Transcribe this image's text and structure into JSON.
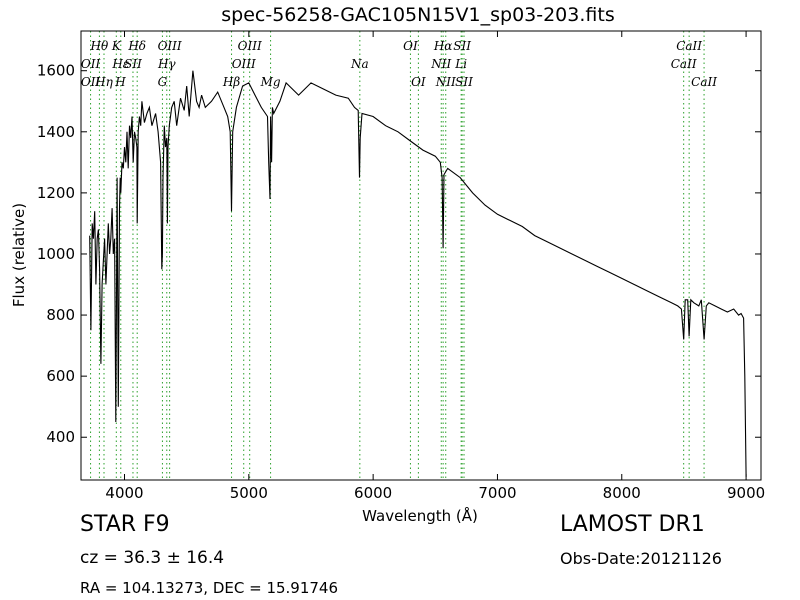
{
  "header": {
    "title": "spec-56258-GAC105N15V1_sp03-203.fits"
  },
  "info": {
    "object": "STAR   F9",
    "cz": "cz = 36.3  ± 16.4",
    "radec": "RA = 104.13273, DEC = 15.91746",
    "survey": "LAMOST DR1",
    "obs_date": "Obs-Date:20121126"
  },
  "colors": {
    "spectrum": "#000000",
    "lines": "#2ca02c",
    "frame": "#000000"
  },
  "chart_data": {
    "type": "line",
    "title": "spec-56258-GAC105N15V1_sp03-203.fits",
    "xlabel": "Wavelength (Å)",
    "ylabel": "Flux (relative)",
    "xlim": [
      3650,
      9120
    ],
    "ylim": [
      260,
      1730
    ],
    "xticks": [
      4000,
      5000,
      6000,
      7000,
      8000,
      9000
    ],
    "yticks": [
      400,
      600,
      800,
      1000,
      1200,
      1400,
      1600
    ],
    "grid": false,
    "series": [
      {
        "x": [
          3720,
          3730,
          3740,
          3750,
          3760,
          3770,
          3780,
          3790,
          3800,
          3810,
          3820,
          3830,
          3840,
          3850,
          3860,
          3870,
          3880,
          3890,
          3900,
          3910,
          3920,
          3930,
          3935,
          3940,
          3950,
          3960,
          3965,
          3970,
          3980,
          3990,
          4000,
          4010,
          4020,
          4030,
          4040,
          4050,
          4060,
          4070,
          4080,
          4090,
          4100,
          4102,
          4110,
          4120,
          4130,
          4140,
          4160,
          4180,
          4200,
          4220,
          4250,
          4270,
          4290,
          4300,
          4305,
          4310,
          4320,
          4330,
          4340,
          4345,
          4350,
          4360,
          4380,
          4400,
          4420,
          4450,
          4480,
          4500,
          4520,
          4550,
          4580,
          4600,
          4620,
          4650,
          4700,
          4750,
          4800,
          4830,
          4850,
          4861,
          4870,
          4900,
          4950,
          5000,
          5050,
          5100,
          5150,
          5160,
          5170,
          5175,
          5183,
          5190,
          5200,
          5250,
          5300,
          5400,
          5500,
          5600,
          5700,
          5800,
          5850,
          5880,
          5890,
          5896,
          5910,
          6000,
          6100,
          6200,
          6300,
          6400,
          6500,
          6540,
          6555,
          6563,
          6570,
          6600,
          6700,
          6800,
          6900,
          7000,
          7100,
          7200,
          7300,
          7400,
          7500,
          7600,
          7700,
          7800,
          7900,
          8000,
          8100,
          8200,
          8300,
          8400,
          8450,
          8480,
          8498,
          8510,
          8530,
          8542,
          8555,
          8580,
          8620,
          8640,
          8662,
          8680,
          8700,
          8750,
          8800,
          8850,
          8900,
          8940,
          8960,
          8980,
          8990,
          9000
        ],
        "y": [
          1060,
          750,
          1100,
          1050,
          1140,
          900,
          1050,
          1080,
          950,
          640,
          900,
          980,
          1050,
          900,
          1000,
          1100,
          1000,
          1050,
          1150,
          1000,
          1050,
          450,
          800,
          1250,
          500,
          1150,
          1250,
          1200,
          1300,
          1280,
          1350,
          1300,
          1400,
          1280,
          1420,
          1380,
          1450,
          1300,
          1400,
          1380,
          1350,
          1100,
          1400,
          1450,
          1420,
          1500,
          1430,
          1460,
          1480,
          1420,
          1460,
          1400,
          1300,
          950,
          1000,
          1250,
          1420,
          1350,
          1380,
          1100,
          1350,
          1420,
          1480,
          1500,
          1420,
          1510,
          1470,
          1550,
          1450,
          1600,
          1500,
          1480,
          1520,
          1480,
          1500,
          1530,
          1480,
          1450,
          1400,
          1140,
          1400,
          1480,
          1550,
          1560,
          1520,
          1480,
          1450,
          1300,
          1180,
          1450,
          1300,
          1480,
          1460,
          1500,
          1560,
          1520,
          1560,
          1540,
          1520,
          1510,
          1480,
          1470,
          1250,
          1380,
          1460,
          1450,
          1420,
          1400,
          1370,
          1340,
          1320,
          1300,
          1250,
          1020,
          1260,
          1280,
          1250,
          1200,
          1160,
          1130,
          1110,
          1090,
          1060,
          1040,
          1020,
          1000,
          980,
          960,
          940,
          920,
          900,
          880,
          860,
          840,
          830,
          820,
          720,
          850,
          850,
          730,
          850,
          840,
          830,
          850,
          720,
          830,
          840,
          830,
          820,
          810,
          820,
          800,
          805,
          790,
          600,
          270
        ]
      }
    ],
    "spectral_lines": [
      {
        "label": "Hθ",
        "wave": 3798,
        "row": 1,
        "tier": "top"
      },
      {
        "label": "OII",
        "wave": 3727,
        "row": 2,
        "tier": "top"
      },
      {
        "label": "OII",
        "wave": 3727,
        "row": 3,
        "tier": "top"
      },
      {
        "label": "Hη",
        "wave": 3835,
        "row": 3,
        "tier": "top"
      },
      {
        "label": "K",
        "wave": 3934,
        "row": 1,
        "tier": "top"
      },
      {
        "label": "Hε",
        "wave": 3970,
        "row": 2,
        "tier": "top"
      },
      {
        "label": "H",
        "wave": 3968,
        "row": 3,
        "tier": "top"
      },
      {
        "label": "SII",
        "wave": 4068,
        "row": 2,
        "tier": "top"
      },
      {
        "label": "Hδ",
        "wave": 4102,
        "row": 1,
        "tier": "top"
      },
      {
        "label": "OIII",
        "wave": 4363,
        "row": 1,
        "tier": "top"
      },
      {
        "label": "Hγ",
        "wave": 4340,
        "row": 2,
        "tier": "top"
      },
      {
        "label": "G",
        "wave": 4305,
        "row": 3,
        "tier": "top"
      },
      {
        "label": "OIII",
        "wave": 5007,
        "row": 1,
        "tier": "top"
      },
      {
        "label": "OIII",
        "wave": 4959,
        "row": 2,
        "tier": "top"
      },
      {
        "label": "Hβ",
        "wave": 4861,
        "row": 3,
        "tier": "top"
      },
      {
        "label": "Mg",
        "wave": 5175,
        "row": 3,
        "tier": "top"
      },
      {
        "label": "Na",
        "wave": 5893,
        "row": 2,
        "tier": "top"
      },
      {
        "label": "OI",
        "wave": 6300,
        "row": 1,
        "tier": "top"
      },
      {
        "label": "OI",
        "wave": 6364,
        "row": 3,
        "tier": "top"
      },
      {
        "label": "Hα",
        "wave": 6563,
        "row": 1,
        "tier": "top"
      },
      {
        "label": "SII",
        "wave": 6716,
        "row": 1,
        "tier": "top"
      },
      {
        "label": "NII",
        "wave": 6548,
        "row": 2,
        "tier": "top"
      },
      {
        "label": "Li",
        "wave": 6708,
        "row": 2,
        "tier": "top"
      },
      {
        "label": "NII",
        "wave": 6584,
        "row": 3,
        "tier": "top"
      },
      {
        "label": "SII",
        "wave": 6731,
        "row": 3,
        "tier": "top"
      },
      {
        "label": "CaII",
        "wave": 8542,
        "row": 1,
        "tier": "top"
      },
      {
        "label": "CaII",
        "wave": 8498,
        "row": 2,
        "tier": "top"
      },
      {
        "label": "CaII",
        "wave": 8662,
        "row": 3,
        "tier": "top"
      }
    ]
  }
}
